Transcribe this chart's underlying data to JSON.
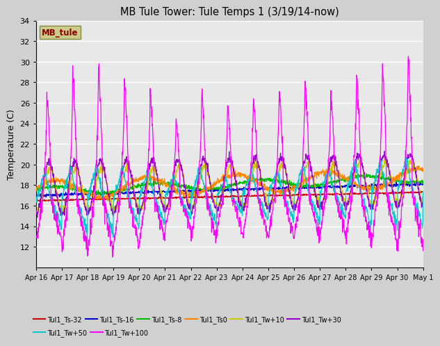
{
  "title": "MB Tule Tower: Tule Temps 1 (3/19/14-now)",
  "ylabel": "Temperature (C)",
  "ylim": [
    10,
    34
  ],
  "yticks": [
    12,
    14,
    16,
    18,
    20,
    22,
    24,
    26,
    28,
    30,
    32,
    34
  ],
  "bg_color": "#e8e8e8",
  "fig_color": "#d0d0d0",
  "legend_box_text": "MB_tule",
  "legend_box_facecolor": "#cccc88",
  "legend_box_edgecolor": "#888844",
  "legend_box_text_color": "#880000",
  "series": [
    {
      "label": "Tul1_Ts-32",
      "color": "#cc0000"
    },
    {
      "label": "Tul1_Ts-16",
      "color": "#0000cc"
    },
    {
      "label": "Tul1_Ts-8",
      "color": "#00bb00"
    },
    {
      "label": "Tul1_Ts0",
      "color": "#ff8800"
    },
    {
      "label": "Tul1_Tw+10",
      "color": "#cccc00"
    },
    {
      "label": "Tul1_Tw+30",
      "color": "#9900cc"
    },
    {
      "label": "Tul1_Tw+50",
      "color": "#00cccc"
    },
    {
      "label": "Tul1_Tw+100",
      "color": "#ff00ff"
    }
  ],
  "xtick_labels": [
    "Apr 16",
    "Apr 17",
    "Apr 18",
    "Apr 19",
    "Apr 20",
    "Apr 21",
    "Apr 22",
    "Apr 23",
    "Apr 24",
    "Apr 25",
    "Apr 26",
    "Apr 27",
    "Apr 28",
    "Apr 29",
    "Apr 30",
    "May 1"
  ],
  "n_points": 1500
}
